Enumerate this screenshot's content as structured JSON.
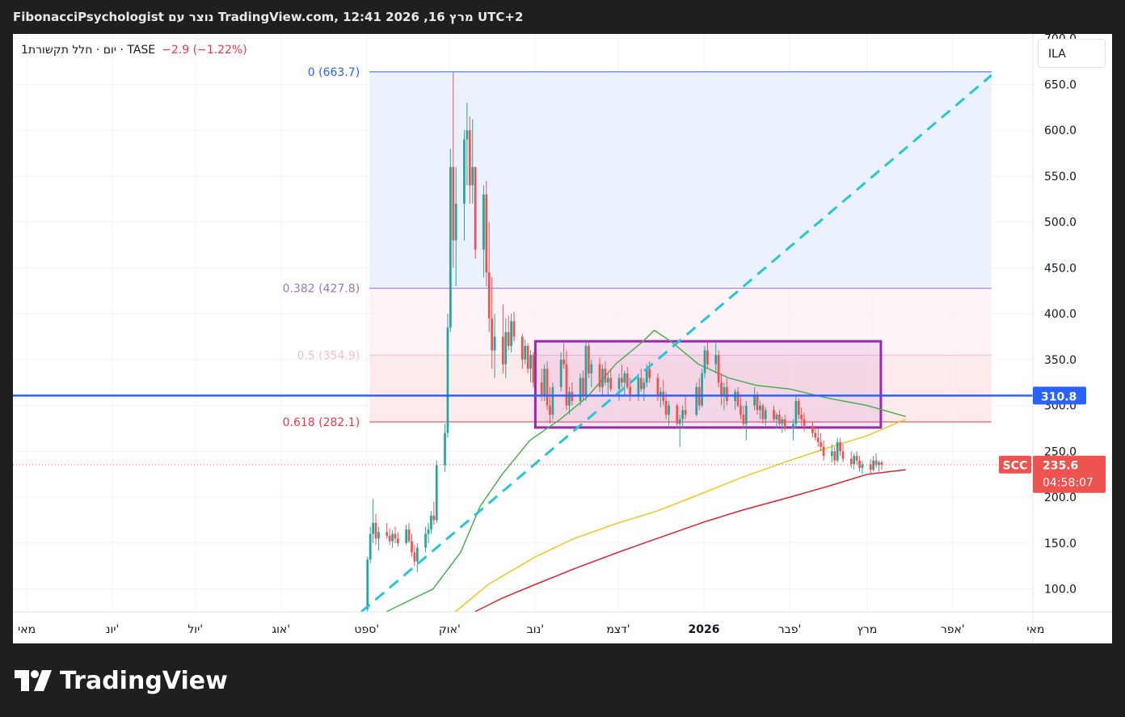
{
  "header": {
    "title": "FibonacciPsychologist נוצר עם TradingView.com, 12:41 2026 ,16 מרץ UTC+2"
  },
  "legend": {
    "symbol_info": "1יום · חלל תקשורת · TASE",
    "change": "−2.9 (−1.22%)"
  },
  "currency_button": "ILA",
  "footer": {
    "brand": "TradingView"
  },
  "colors": {
    "up": "#26a69a",
    "down": "#ef5350",
    "fib_0": "#2962ff",
    "fib_382": "#9575cd",
    "fib_5": "#f8bbd0",
    "fib_618": "#f23645",
    "trend": "#26c6da",
    "box": "#9c27b0",
    "hline": "#2962ff",
    "ma_short": "#4caf50",
    "ma_mid": "#f5c518",
    "ma_long": "#e91e2a",
    "last_price": "#ef5350"
  },
  "chart_data": {
    "type": "candlestick",
    "y_axis": {
      "range": [
        75,
        705
      ],
      "ticks": [
        "100.0",
        "150.0",
        "200.0",
        "250.0",
        "300.0",
        "350.0",
        "400.0",
        "450.0",
        "500.0",
        "550.0",
        "600.0",
        "650.0",
        "700.0"
      ]
    },
    "x_axis": {
      "range": [
        "2025-04-26",
        "2026-04-30"
      ],
      "ticks": [
        {
          "date": "2025-05-01",
          "label": "מאי",
          "bold": false
        },
        {
          "date": "2025-06-01",
          "label": "יונ'",
          "bold": false
        },
        {
          "date": "2025-07-01",
          "label": "יול'",
          "bold": false
        },
        {
          "date": "2025-08-01",
          "label": "אוג'",
          "bold": false
        },
        {
          "date": "2025-09-01",
          "label": "ספט'",
          "bold": false
        },
        {
          "date": "2025-10-01",
          "label": "אוק'",
          "bold": false
        },
        {
          "date": "2025-11-01",
          "label": "נוב'",
          "bold": false
        },
        {
          "date": "2025-12-01",
          "label": "דצמ'",
          "bold": false
        },
        {
          "date": "2026-01-01",
          "label": "2026",
          "bold": true
        },
        {
          "date": "2026-02-01",
          "label": "פבר'",
          "bold": false
        },
        {
          "date": "2026-03-01",
          "label": "מרץ",
          "bold": false
        },
        {
          "date": "2026-04-01",
          "label": "אפר'",
          "bold": false
        },
        {
          "date": "2026-05-01",
          "label": "מאי",
          "bold": false
        }
      ]
    },
    "fibonacci": {
      "start_date": "2025-09-02",
      "end_date": "2026-04-15",
      "levels": [
        {
          "ratio_label": "0",
          "value": 663.7,
          "label": "0 (663.7)",
          "color": "#2962ff",
          "fill": "rgba(41,98,255,0.09)"
        },
        {
          "ratio_label": "0.382",
          "value": 427.8,
          "label": "0.382 (427.8)",
          "color": "#9575cd",
          "fill": "rgba(240,98,146,0.08)"
        },
        {
          "ratio_label": "0.5",
          "value": 354.9,
          "label": "0.5 (354.9)",
          "color": "#f8bbd0",
          "fill": "rgba(242,54,69,0.11)"
        },
        {
          "ratio_label": "0.618",
          "value": 282.1,
          "label": "0.618 (282.1)",
          "color": "#f23645",
          "fill": null
        }
      ]
    },
    "horizontal_line": {
      "value": 310.8,
      "label": "310.8",
      "color": "#2962ff"
    },
    "last_price": {
      "symbol": "SCC",
      "value": 235.6,
      "label": "235.6",
      "countdown": "04:58:07"
    },
    "rectangle": {
      "start_date": "2025-11-01",
      "end_date": "2026-03-06",
      "top": 370,
      "bottom": 276
    },
    "trend_line": {
      "points": [
        {
          "date": "2025-08-30",
          "value": 75
        },
        {
          "date": "2026-04-15",
          "value": 660
        }
      ]
    },
    "moving_averages": [
      {
        "color": "#4caf50",
        "points": [
          [
            "2025-09-08",
            75
          ],
          [
            "2025-09-25",
            100
          ],
          [
            "2025-10-05",
            140
          ],
          [
            "2025-10-12",
            190
          ],
          [
            "2025-10-20",
            225
          ],
          [
            "2025-10-30",
            262
          ],
          [
            "2025-11-10",
            285
          ],
          [
            "2025-11-20",
            310
          ],
          [
            "2025-11-30",
            345
          ],
          [
            "2025-12-10",
            370
          ],
          [
            "2025-12-14",
            382
          ],
          [
            "2025-12-20",
            370
          ],
          [
            "2025-12-30",
            345
          ],
          [
            "2026-01-10",
            330
          ],
          [
            "2026-01-20",
            322
          ],
          [
            "2026-02-01",
            318
          ],
          [
            "2026-02-15",
            308
          ],
          [
            "2026-03-01",
            300
          ],
          [
            "2026-03-15",
            288
          ]
        ]
      },
      {
        "color": "#f5c518",
        "points": [
          [
            "2025-10-03",
            75
          ],
          [
            "2025-10-15",
            105
          ],
          [
            "2025-11-01",
            135
          ],
          [
            "2025-11-15",
            155
          ],
          [
            "2025-12-01",
            172
          ],
          [
            "2025-12-15",
            185
          ],
          [
            "2026-01-01",
            205
          ],
          [
            "2026-01-15",
            222
          ],
          [
            "2026-02-01",
            240
          ],
          [
            "2026-02-15",
            254
          ],
          [
            "2026-03-01",
            267
          ],
          [
            "2026-03-15",
            285
          ]
        ]
      },
      {
        "color": "#e91e2a",
        "points": [
          [
            "2025-10-10",
            75
          ],
          [
            "2025-10-20",
            90
          ],
          [
            "2025-11-01",
            105
          ],
          [
            "2025-11-15",
            122
          ],
          [
            "2025-12-01",
            140
          ],
          [
            "2025-12-15",
            155
          ],
          [
            "2026-01-01",
            173
          ],
          [
            "2026-01-15",
            186
          ],
          [
            "2026-02-01",
            200
          ],
          [
            "2026-02-15",
            212
          ],
          [
            "2026-03-01",
            225
          ],
          [
            "2026-03-15",
            230
          ]
        ]
      }
    ],
    "candles": [
      [
        "2025-09-01",
        78,
        135,
        75,
        132
      ],
      [
        "2025-09-02",
        132,
        168,
        128,
        160
      ],
      [
        "2025-09-03",
        160,
        198,
        150,
        172
      ],
      [
        "2025-09-04",
        172,
        182,
        148,
        155
      ],
      [
        "2025-09-05",
        155,
        168,
        142,
        162
      ],
      [
        "2025-09-08",
        162,
        172,
        155,
        158
      ],
      [
        "2025-09-09",
        158,
        166,
        148,
        152
      ],
      [
        "2025-09-10",
        152,
        164,
        145,
        160
      ],
      [
        "2025-09-11",
        160,
        168,
        150,
        155
      ],
      [
        "2025-09-12",
        155,
        162,
        146,
        150
      ],
      [
        "2025-09-15",
        150,
        170,
        148,
        165
      ],
      [
        "2025-09-16",
        165,
        172,
        150,
        152
      ],
      [
        "2025-09-17",
        152,
        160,
        135,
        140
      ],
      [
        "2025-09-18",
        140,
        148,
        125,
        130
      ],
      [
        "2025-09-19",
        130,
        150,
        118,
        145
      ],
      [
        "2025-09-22",
        145,
        168,
        140,
        160
      ],
      [
        "2025-09-23",
        160,
        172,
        150,
        165
      ],
      [
        "2025-09-24",
        165,
        185,
        160,
        180
      ],
      [
        "2025-09-25",
        180,
        195,
        170,
        175
      ],
      [
        "2025-09-26",
        175,
        240,
        172,
        235
      ],
      [
        "2025-09-29",
        235,
        280,
        228,
        270
      ],
      [
        "2025-09-30",
        270,
        400,
        265,
        385
      ],
      [
        "2025-10-01",
        385,
        580,
        380,
        560
      ],
      [
        "2025-10-02",
        560,
        663.7,
        450,
        480
      ],
      [
        "2025-10-03",
        480,
        560,
        430,
        520
      ],
      [
        "2025-10-06",
        520,
        600,
        480,
        590
      ],
      [
        "2025-10-07",
        590,
        630,
        540,
        600
      ],
      [
        "2025-10-08",
        600,
        615,
        520,
        540
      ],
      [
        "2025-10-09",
        540,
        612,
        520,
        560
      ],
      [
        "2025-10-10",
        560,
        560,
        460,
        470
      ],
      [
        "2025-10-13",
        470,
        540,
        440,
        530
      ],
      [
        "2025-10-14",
        530,
        545,
        430,
        445
      ],
      [
        "2025-10-15",
        445,
        500,
        380,
        395
      ],
      [
        "2025-10-16",
        395,
        440,
        340,
        360
      ],
      [
        "2025-10-17",
        360,
        400,
        330,
        375
      ],
      [
        "2025-10-20",
        375,
        410,
        335,
        345
      ],
      [
        "2025-10-21",
        345,
        395,
        330,
        380
      ],
      [
        "2025-10-22",
        380,
        398,
        360,
        365
      ],
      [
        "2025-10-23",
        365,
        400,
        358,
        392
      ],
      [
        "2025-10-24",
        392,
        402,
        370,
        375
      ],
      [
        "2025-10-27",
        375,
        378,
        340,
        350
      ],
      [
        "2025-10-28",
        350,
        372,
        345,
        365
      ],
      [
        "2025-10-29",
        365,
        368,
        335,
        340
      ],
      [
        "2025-10-30",
        340,
        360,
        325,
        355
      ],
      [
        "2025-10-31",
        355,
        358,
        320,
        325
      ],
      [
        "2025-11-03",
        325,
        340,
        305,
        310
      ],
      [
        "2025-11-04",
        310,
        345,
        305,
        340
      ],
      [
        "2025-11-05",
        340,
        348,
        295,
        300
      ],
      [
        "2025-11-06",
        300,
        320,
        280,
        290
      ],
      [
        "2025-11-07",
        290,
        325,
        285,
        320
      ],
      [
        "2025-11-10",
        320,
        358,
        315,
        350
      ],
      [
        "2025-11-11",
        350,
        368,
        340,
        345
      ],
      [
        "2025-11-12",
        345,
        360,
        295,
        300
      ],
      [
        "2025-11-13",
        300,
        320,
        290,
        315
      ],
      [
        "2025-11-14",
        315,
        325,
        300,
        305
      ],
      [
        "2025-11-17",
        305,
        335,
        300,
        330
      ],
      [
        "2025-11-18",
        330,
        338,
        305,
        310
      ],
      [
        "2025-11-19",
        310,
        372,
        305,
        365
      ],
      [
        "2025-11-20",
        365,
        368,
        330,
        335
      ],
      [
        "2025-11-21",
        335,
        350,
        320,
        345
      ],
      [
        "2025-11-24",
        345,
        352,
        315,
        320
      ],
      [
        "2025-11-25",
        320,
        345,
        310,
        340
      ],
      [
        "2025-11-26",
        340,
        348,
        322,
        325
      ],
      [
        "2025-11-27",
        325,
        335,
        310,
        330
      ],
      [
        "2025-11-28",
        330,
        340,
        315,
        318
      ],
      [
        "2025-12-01",
        318,
        335,
        305,
        330
      ],
      [
        "2025-12-02",
        330,
        345,
        320,
        325
      ],
      [
        "2025-12-03",
        325,
        338,
        310,
        335
      ],
      [
        "2025-12-04",
        335,
        342,
        318,
        320
      ],
      [
        "2025-12-05",
        320,
        330,
        305,
        310
      ],
      [
        "2025-12-08",
        310,
        335,
        305,
        330
      ],
      [
        "2025-12-09",
        330,
        340,
        315,
        318
      ],
      [
        "2025-12-10",
        318,
        330,
        305,
        325
      ],
      [
        "2025-12-11",
        325,
        345,
        320,
        340
      ],
      [
        "2025-12-12",
        340,
        348,
        325,
        330
      ],
      [
        "2025-12-15",
        330,
        335,
        305,
        310
      ],
      [
        "2025-12-16",
        310,
        320,
        298,
        315
      ],
      [
        "2025-12-17",
        315,
        328,
        300,
        305
      ],
      [
        "2025-12-18",
        305,
        315,
        285,
        290
      ],
      [
        "2025-12-19",
        290,
        305,
        278,
        300
      ],
      [
        "2025-12-22",
        300,
        302,
        275,
        280
      ],
      [
        "2025-12-23",
        280,
        290,
        255,
        285
      ],
      [
        "2025-12-24",
        285,
        300,
        275,
        295
      ],
      [
        "2025-12-25",
        295,
        310,
        285,
        290
      ],
      [
        "2025-12-29",
        290,
        325,
        288,
        320
      ],
      [
        "2025-12-30",
        320,
        330,
        295,
        300
      ],
      [
        "2025-12-31",
        300,
        340,
        298,
        335
      ],
      [
        "2026-01-01",
        335,
        365,
        330,
        360
      ],
      [
        "2026-01-02",
        360,
        370,
        340,
        345
      ],
      [
        "2026-01-05",
        345,
        368,
        335,
        355
      ],
      [
        "2026-01-06",
        355,
        360,
        320,
        325
      ],
      [
        "2026-01-07",
        325,
        335,
        300,
        310
      ],
      [
        "2026-01-08",
        310,
        325,
        295,
        320
      ],
      [
        "2026-01-09",
        320,
        330,
        300,
        305
      ],
      [
        "2026-01-12",
        305,
        318,
        295,
        315
      ],
      [
        "2026-01-13",
        315,
        320,
        298,
        300
      ],
      [
        "2026-01-14",
        300,
        310,
        285,
        290
      ],
      [
        "2026-01-15",
        290,
        300,
        275,
        280
      ],
      [
        "2026-01-16",
        280,
        305,
        262,
        300
      ],
      [
        "2026-01-19",
        300,
        320,
        295,
        310
      ],
      [
        "2026-01-20",
        310,
        315,
        290,
        295
      ],
      [
        "2026-01-21",
        295,
        305,
        285,
        300
      ],
      [
        "2026-01-22",
        300,
        302,
        280,
        285
      ],
      [
        "2026-01-23",
        285,
        298,
        278,
        295
      ],
      [
        "2026-01-26",
        295,
        300,
        282,
        285
      ],
      [
        "2026-01-27",
        285,
        292,
        275,
        290
      ],
      [
        "2026-01-28",
        290,
        295,
        278,
        280
      ],
      [
        "2026-01-29",
        280,
        288,
        270,
        285
      ],
      [
        "2026-01-30",
        285,
        290,
        272,
        275
      ],
      [
        "2026-02-02",
        275,
        285,
        262,
        280
      ],
      [
        "2026-02-03",
        280,
        310,
        275,
        305
      ],
      [
        "2026-02-04",
        305,
        308,
        285,
        290
      ],
      [
        "2026-02-05",
        290,
        298,
        278,
        285
      ],
      [
        "2026-02-06",
        285,
        292,
        272,
        278
      ],
      [
        "2026-02-09",
        278,
        282,
        265,
        270
      ],
      [
        "2026-02-10",
        270,
        278,
        262,
        265
      ],
      [
        "2026-02-11",
        265,
        275,
        255,
        260
      ],
      [
        "2026-02-12",
        260,
        270,
        250,
        255
      ],
      [
        "2026-02-13",
        255,
        262,
        240,
        245
      ],
      [
        "2026-02-16",
        245,
        258,
        238,
        250
      ],
      [
        "2026-02-17",
        250,
        255,
        235,
        240
      ],
      [
        "2026-02-18",
        240,
        265,
        238,
        260
      ],
      [
        "2026-02-19",
        260,
        265,
        245,
        250
      ],
      [
        "2026-02-20",
        250,
        258,
        238,
        242
      ],
      [
        "2026-02-23",
        242,
        250,
        232,
        236
      ],
      [
        "2026-02-24",
        236,
        248,
        230,
        245
      ],
      [
        "2026-02-25",
        245,
        250,
        235,
        240
      ],
      [
        "2026-02-26",
        240,
        245,
        228,
        232
      ],
      [
        "2026-02-27",
        232,
        240,
        225,
        236
      ],
      [
        "2026-03-02",
        236,
        242,
        226,
        230
      ],
      [
        "2026-03-03",
        230,
        245,
        228,
        240
      ],
      [
        "2026-03-04",
        240,
        248,
        232,
        235
      ],
      [
        "2026-03-05",
        235,
        240,
        228,
        238
      ],
      [
        "2026-03-06",
        238,
        240,
        230,
        235.6
      ]
    ]
  }
}
